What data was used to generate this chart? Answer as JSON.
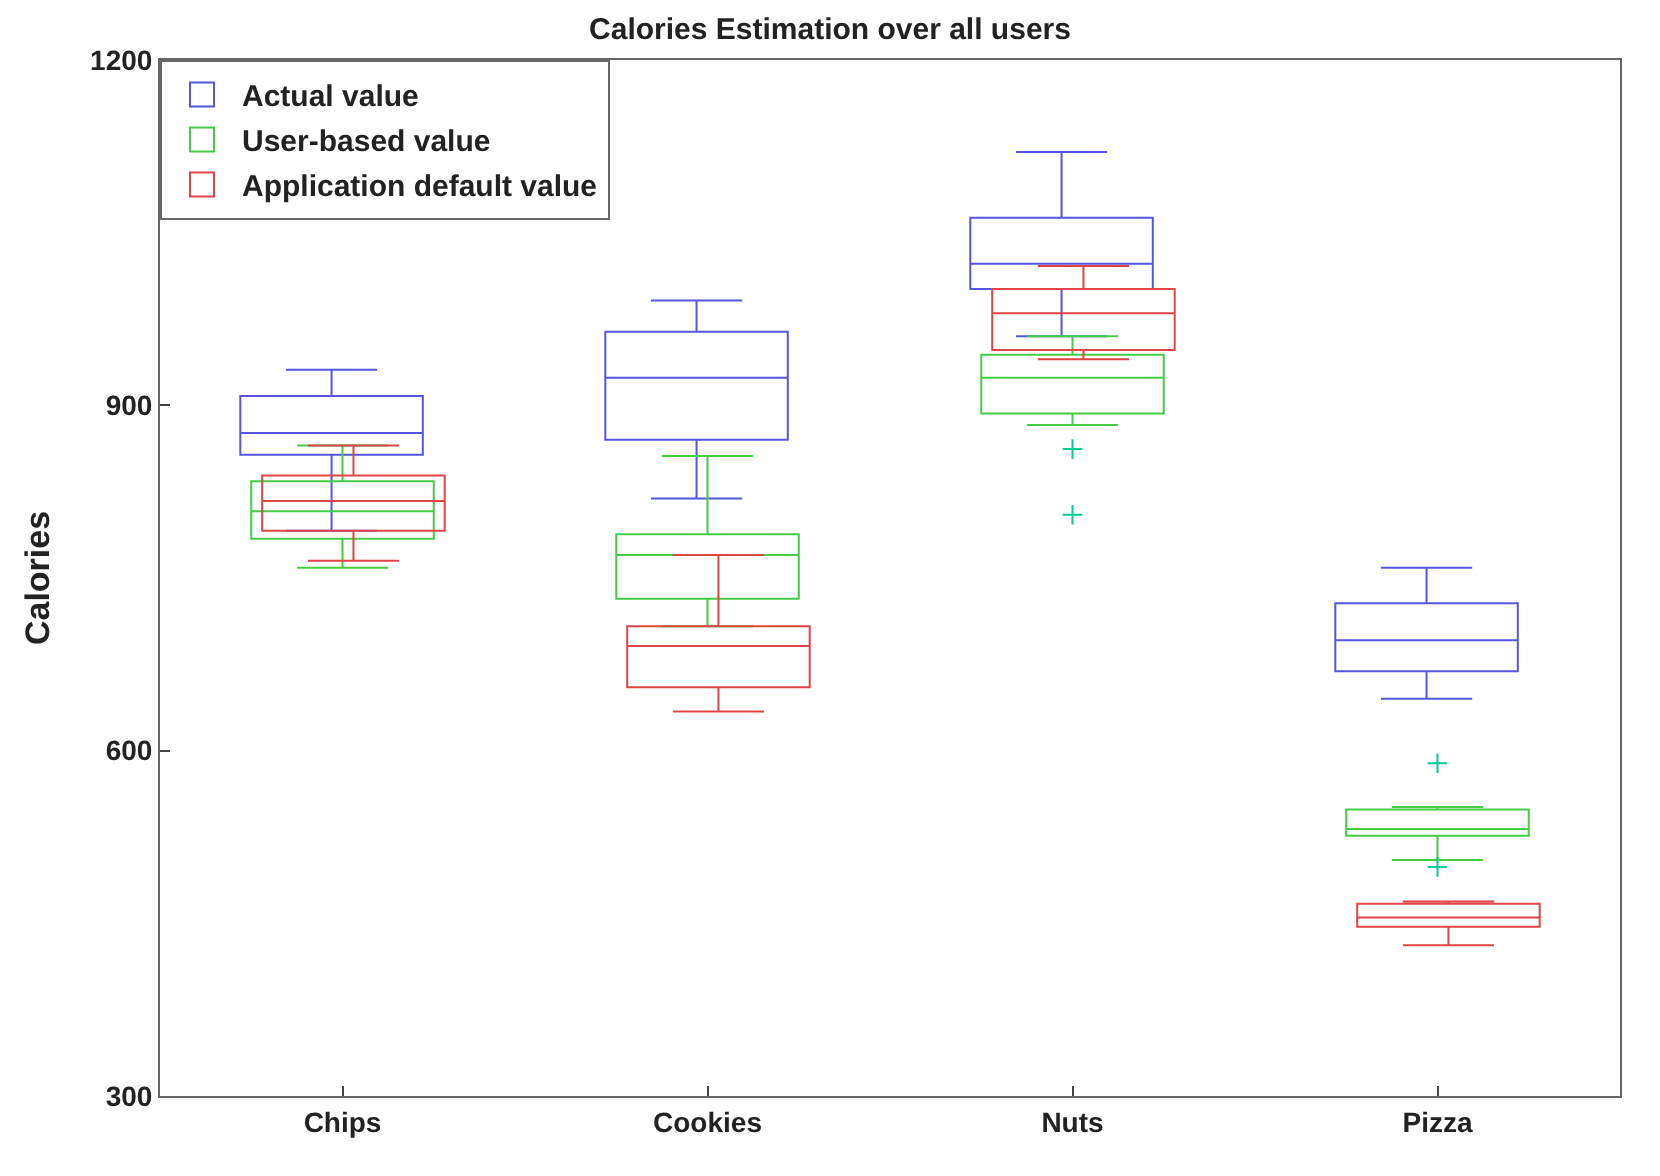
{
  "chart_data": {
    "type": "box",
    "title": "Calories Estimation over all users",
    "ylabel": "Calories",
    "categories": [
      "Chips",
      "Cookies",
      "Nuts",
      "Pizza"
    ],
    "ylim": [
      300,
      1200
    ],
    "yticks": [
      300,
      600,
      900,
      1200
    ],
    "legend": "top left",
    "series": [
      {
        "name": "Actual value",
        "color": "#5555dd",
        "boxes": [
          {
            "low": 791,
            "q1": 857,
            "median": 876,
            "q3": 908,
            "high": 931
          },
          {
            "low": 819,
            "q1": 870,
            "median": 924,
            "q3": 964,
            "high": 991
          },
          {
            "low": 960,
            "q1": 1001,
            "median": 1023,
            "q3": 1063,
            "high": 1120
          },
          {
            "low": 645,
            "q1": 669,
            "median": 696,
            "q3": 728,
            "high": 759
          }
        ]
      },
      {
        "name": "User-based value",
        "color": "#44cc44",
        "boxes": [
          {
            "low": 759,
            "q1": 784,
            "median": 808,
            "q3": 834,
            "high": 865
          },
          {
            "low": 708,
            "q1": 732,
            "median": 770,
            "q3": 788,
            "high": 856
          },
          {
            "low": 883,
            "q1": 893,
            "median": 924,
            "q3": 944,
            "high": 960,
            "outliers": [
              862,
              805
            ]
          },
          {
            "low": 505,
            "q1": 526,
            "median": 532,
            "q3": 549,
            "high": 551,
            "outliers": [
              589,
              499
            ]
          }
        ]
      },
      {
        "name": "Application default value",
        "color": "#e04444",
        "boxes": [
          {
            "low": 765,
            "q1": 791,
            "median": 817,
            "q3": 839,
            "high": 865
          },
          {
            "low": 634,
            "q1": 655,
            "median": 691,
            "q3": 708,
            "high": 770
          },
          {
            "low": 940,
            "q1": 948,
            "median": 980,
            "q3": 1001,
            "high": 1021
          },
          {
            "low": 431,
            "q1": 447,
            "median": 455,
            "q3": 467,
            "high": 469
          }
        ]
      }
    ]
  }
}
